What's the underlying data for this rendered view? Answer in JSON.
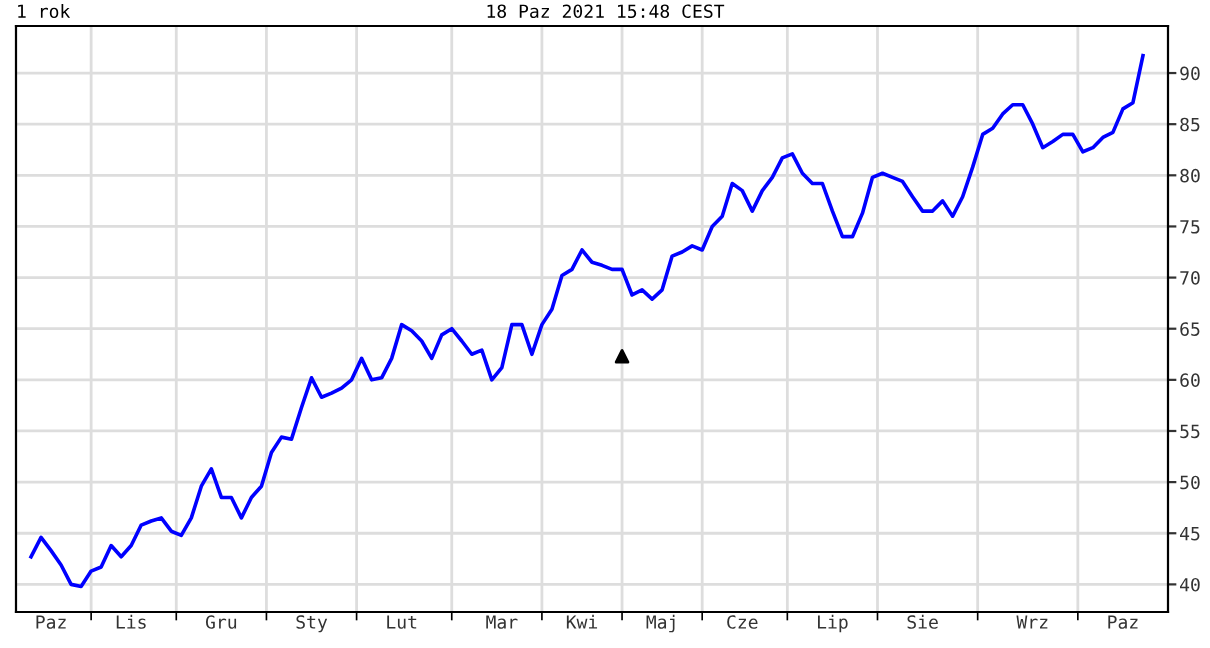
{
  "chart_data": {
    "type": "line",
    "title": "1 rok",
    "subtitle": "18 Paz 2021 15:48 CEST",
    "categories": [
      null,
      null,
      "Paz",
      null,
      null,
      null,
      null,
      null,
      null,
      null,
      "Lis",
      null,
      null,
      null,
      null,
      null,
      null,
      null,
      null,
      "Gru",
      null,
      null,
      null,
      null,
      null,
      null,
      null,
      null,
      "Sty",
      null,
      null,
      null,
      null,
      null,
      null,
      null,
      null,
      "Lut",
      null,
      null,
      null,
      null,
      null,
      null,
      null,
      null,
      null,
      "Mar",
      null,
      null,
      null,
      null,
      null,
      null,
      null,
      "Kwi",
      null,
      null,
      null,
      null,
      null,
      null,
      null,
      "Maj",
      null,
      null,
      null,
      null,
      null,
      null,
      null,
      "Cze",
      null,
      null,
      null,
      null,
      null,
      null,
      null,
      null,
      "Lip",
      null,
      null,
      null,
      null,
      null,
      null,
      null,
      null,
      "Sie",
      null,
      null,
      null,
      null,
      null,
      null,
      null,
      null,
      null,
      null,
      "Wrz",
      null,
      null,
      null,
      null,
      null,
      null,
      null,
      null,
      "Paz",
      null,
      null
    ],
    "ylim": [
      37.3,
      94.6
    ],
    "yticks": [
      40,
      45,
      50,
      55,
      60,
      65,
      70,
      75,
      80,
      85,
      90
    ],
    "grid": true,
    "legend": false,
    "series": [
      {
        "type": "line",
        "color": "#0000ff",
        "marker": "none",
        "line_style": "solid",
        "values": [
          42.7,
          44.6,
          43.3,
          41.9,
          40,
          39.8,
          41.3,
          41.7,
          43.8,
          42.7,
          43.8,
          45.8,
          46.2,
          46.5,
          45.2,
          44.8,
          46.5,
          49.6,
          51.3,
          48.5,
          48.5,
          46.5,
          48.5,
          49.6,
          52.9,
          54.4,
          54.2,
          57.3,
          60.2,
          58.3,
          58.7,
          59.2,
          60,
          62.1,
          60,
          60.2,
          62.1,
          65.4,
          64.8,
          63.8,
          62.1,
          64.4,
          65,
          63.8,
          62.5,
          62.9,
          60,
          61.2,
          65.4,
          65.4,
          62.5,
          65.4,
          66.9,
          70.2,
          70.8,
          72.7,
          71.5,
          71.2,
          70.8,
          70.8,
          68.3,
          68.8,
          67.9,
          68.8,
          72.1,
          72.5,
          73.1,
          72.7,
          75,
          76,
          79.2,
          78.5,
          76.5,
          78.5,
          79.8,
          81.7,
          82.1,
          80.2,
          79.2,
          79.2,
          76.5,
          74,
          74,
          76.3,
          79.8,
          80.2,
          79.8,
          79.4,
          77.9,
          76.5,
          76.5,
          77.5,
          76,
          77.9,
          80.8,
          84,
          84.6,
          86,
          86.9,
          86.9,
          85,
          82.7,
          83.3,
          84,
          84,
          82.3,
          82.7,
          83.7,
          84.2,
          86.5,
          87.1,
          91.7
        ]
      },
      {
        "type": "scatter",
        "color": "#000000",
        "marker": "triangle",
        "values": [
          null,
          null,
          null,
          null,
          null,
          null,
          null,
          null,
          null,
          null,
          null,
          null,
          null,
          null,
          null,
          null,
          null,
          null,
          null,
          null,
          null,
          null,
          null,
          null,
          null,
          null,
          null,
          null,
          null,
          null,
          null,
          null,
          null,
          null,
          null,
          null,
          null,
          null,
          null,
          null,
          null,
          null,
          null,
          null,
          null,
          null,
          null,
          null,
          null,
          null,
          null,
          null,
          null,
          null,
          null,
          null,
          null,
          null,
          null,
          62.3,
          null,
          null,
          null,
          null,
          null,
          null,
          null,
          null,
          null,
          null,
          null,
          null,
          null,
          null,
          null,
          null,
          null,
          null,
          null,
          null,
          null,
          null,
          null,
          null,
          null,
          null,
          null,
          null,
          null,
          null,
          null,
          null,
          null,
          null,
          null,
          null,
          null,
          null,
          null,
          null,
          null,
          null,
          null,
          null,
          null,
          null,
          null,
          null,
          null,
          null,
          null,
          null
        ]
      }
    ]
  }
}
